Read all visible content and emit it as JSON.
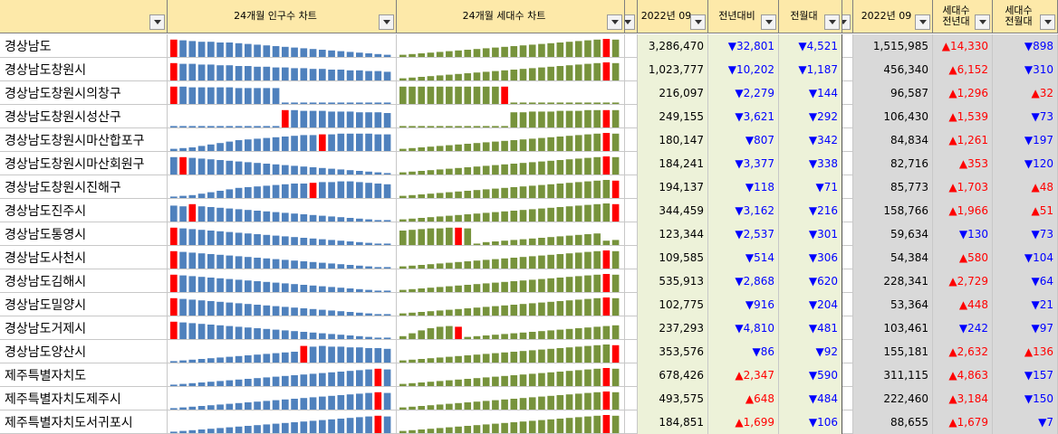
{
  "headers": [
    {
      "label": "",
      "filter": true
    },
    {
      "label": "24개월 인구수 차트",
      "filter": true
    },
    {
      "label": "24개월 세대수 차트",
      "filter": true
    },
    {
      "label": "",
      "filter": true
    },
    {
      "label": "2022년 09",
      "filter": true
    },
    {
      "label": "전년대비",
      "filter": true
    },
    {
      "label": "전월대",
      "filter": true
    },
    {
      "label": "",
      "filter": true
    },
    {
      "label": "2022년 09",
      "filter": true
    },
    {
      "label": "세대수\n전년대",
      "filter": true
    },
    {
      "label": "세대수\n전월대",
      "filter": true
    }
  ],
  "colors": {
    "header_bg": "#fde9a9",
    "pop_bar": "#4f81bd",
    "hh_bar": "#77933c",
    "highlight_bar": "#ff0000",
    "up": "#ff0000",
    "down": "#0000ff",
    "tint_cell": "#edf2d9",
    "gray_cell": "#d9d9d9"
  },
  "arrow_up": "▲",
  "arrow_down": "▼",
  "rows": [
    {
      "name": "경상남도",
      "pop": "3,286,470",
      "pop_yoy": "32,801",
      "pop_yoy_dir": "down",
      "pop_mom": "4,521",
      "pop_mom_dir": "down",
      "hh": "1,515,985",
      "hh_yoy": "14,330",
      "hh_yoy_dir": "up",
      "hh_mom": "898",
      "hh_mom_dir": "down",
      "pop_series": [
        24,
        23,
        22,
        21,
        21,
        20,
        20,
        19,
        18,
        17,
        16,
        15,
        14,
        13,
        12,
        11,
        10,
        9,
        8,
        7,
        6,
        5,
        4,
        3
      ],
      "pop_hi": 0,
      "hh_series": [
        3,
        4,
        5,
        6,
        7,
        8,
        9,
        10,
        11,
        12,
        13,
        14,
        15,
        16,
        17,
        18,
        19,
        20,
        21,
        22,
        23,
        24,
        25,
        24
      ],
      "hh_hi": 22
    },
    {
      "name": "경상남도창원시",
      "pop": "1,023,777",
      "pop_yoy": "10,202",
      "pop_yoy_dir": "down",
      "pop_mom": "1,187",
      "pop_mom_dir": "down",
      "hh": "456,340",
      "hh_yoy": "6,152",
      "hh_yoy_dir": "up",
      "hh_mom": "310",
      "hh_mom_dir": "down",
      "pop_series": [
        24,
        23,
        23,
        22,
        22,
        21,
        21,
        20,
        20,
        19,
        19,
        18,
        18,
        17,
        17,
        16,
        16,
        15,
        15,
        14,
        14,
        13,
        13,
        12
      ],
      "pop_hi": 0,
      "hh_series": [
        3,
        4,
        5,
        6,
        7,
        8,
        9,
        10,
        11,
        12,
        13,
        14,
        15,
        16,
        17,
        18,
        19,
        20,
        21,
        22,
        23,
        24,
        25,
        24
      ],
      "hh_hi": 22
    },
    {
      "name": "경상남도창원시의창구",
      "pop": "216,097",
      "pop_yoy": "2,279",
      "pop_yoy_dir": "down",
      "pop_mom": "144",
      "pop_mom_dir": "down",
      "hh": "96,587",
      "hh_yoy": "1,296",
      "hh_yoy_dir": "up",
      "hh_mom": "32",
      "hh_mom_dir": "up",
      "pop_series": [
        24,
        24,
        23,
        23,
        23,
        23,
        23,
        22,
        22,
        22,
        22,
        22,
        2,
        2,
        2,
        2,
        2,
        2,
        2,
        2,
        2,
        2,
        2,
        2
      ],
      "pop_hi": 0,
      "hh_series": [
        24,
        24,
        24,
        24,
        24,
        24,
        24,
        24,
        24,
        24,
        24,
        24,
        2,
        2,
        2,
        2,
        2,
        2,
        2,
        2,
        2,
        2,
        2,
        2
      ],
      "hh_hi": 11
    },
    {
      "name": "경상남도창원시성산구",
      "pop": "249,155",
      "pop_yoy": "3,621",
      "pop_yoy_dir": "down",
      "pop_mom": "292",
      "pop_mom_dir": "down",
      "hh": "106,430",
      "hh_yoy": "1,539",
      "hh_yoy_dir": "up",
      "hh_mom": "73",
      "hh_mom_dir": "down",
      "pop_series": [
        2,
        2,
        2,
        2,
        2,
        2,
        2,
        2,
        2,
        2,
        2,
        2,
        24,
        24,
        23,
        23,
        23,
        22,
        22,
        22,
        21,
        21,
        21,
        20
      ],
      "pop_hi": 12,
      "hh_series": [
        2,
        2,
        2,
        2,
        2,
        2,
        2,
        2,
        2,
        2,
        2,
        2,
        21,
        21,
        22,
        22,
        22,
        23,
        23,
        23,
        24,
        24,
        24,
        24
      ],
      "hh_hi": 22
    },
    {
      "name": "경상남도창원시마산합포구",
      "pop": "180,147",
      "pop_yoy": "807",
      "pop_yoy_dir": "down",
      "pop_mom": "342",
      "pop_mom_dir": "down",
      "hh": "84,834",
      "hh_yoy": "1,261",
      "hh_yoy_dir": "up",
      "hh_mom": "197",
      "hh_mom_dir": "down",
      "pop_series": [
        3,
        4,
        5,
        7,
        9,
        11,
        13,
        15,
        16,
        17,
        18,
        19,
        20,
        21,
        22,
        22,
        23,
        23,
        24,
        24,
        24,
        24,
        23,
        23
      ],
      "pop_hi": 16,
      "hh_series": [
        3,
        4,
        5,
        6,
        7,
        8,
        9,
        10,
        11,
        12,
        13,
        14,
        15,
        16,
        17,
        18,
        19,
        20,
        21,
        22,
        23,
        24,
        25,
        24
      ],
      "hh_hi": 22
    },
    {
      "name": "경상남도창원시마산회원구",
      "pop": "184,241",
      "pop_yoy": "3,377",
      "pop_yoy_dir": "down",
      "pop_mom": "338",
      "pop_mom_dir": "down",
      "hh": "82,716",
      "hh_yoy": "353",
      "hh_yoy_dir": "up",
      "hh_mom": "120",
      "hh_mom_dir": "down",
      "pop_series": [
        24,
        24,
        23,
        22,
        21,
        20,
        19,
        18,
        17,
        16,
        15,
        14,
        13,
        12,
        11,
        10,
        9,
        8,
        7,
        6,
        5,
        4,
        3,
        2
      ],
      "pop_hi": 1,
      "hh_series": [
        3,
        4,
        5,
        6,
        7,
        8,
        9,
        10,
        11,
        12,
        13,
        14,
        15,
        16,
        17,
        18,
        19,
        20,
        21,
        22,
        23,
        24,
        25,
        24
      ],
      "hh_hi": 22
    },
    {
      "name": "경상남도창원시진해구",
      "pop": "194,137",
      "pop_yoy": "118",
      "pop_yoy_dir": "down",
      "pop_mom": "71",
      "pop_mom_dir": "down",
      "hh": "85,773",
      "hh_yoy": "1,703",
      "hh_yoy_dir": "up",
      "hh_mom": "48",
      "hh_mom_dir": "up",
      "pop_series": [
        2,
        3,
        4,
        6,
        8,
        10,
        12,
        14,
        15,
        16,
        17,
        18,
        19,
        20,
        20,
        21,
        22,
        22,
        23,
        23,
        22,
        21,
        20,
        19
      ],
      "pop_hi": 15,
      "hh_series": [
        3,
        4,
        5,
        6,
        7,
        8,
        9,
        10,
        11,
        12,
        13,
        14,
        15,
        16,
        17,
        18,
        19,
        20,
        21,
        22,
        23,
        24,
        25,
        24
      ],
      "hh_hi": 23
    },
    {
      "name": "경상남도진주시",
      "pop": "344,459",
      "pop_yoy": "3,162",
      "pop_yoy_dir": "down",
      "pop_mom": "216",
      "pop_mom_dir": "down",
      "hh": "158,766",
      "hh_yoy": "1,966",
      "hh_yoy_dir": "up",
      "hh_mom": "51",
      "hh_mom_dir": "up",
      "pop_series": [
        22,
        21,
        24,
        21,
        20,
        19,
        18,
        17,
        16,
        15,
        14,
        13,
        12,
        11,
        10,
        9,
        8,
        7,
        6,
        5,
        4,
        3,
        2,
        2
      ],
      "pop_hi": 2,
      "hh_series": [
        3,
        4,
        5,
        6,
        7,
        8,
        9,
        10,
        11,
        12,
        13,
        14,
        15,
        16,
        17,
        18,
        19,
        20,
        21,
        22,
        23,
        24,
        25,
        24
      ],
      "hh_hi": 23
    },
    {
      "name": "경상남도통영시",
      "pop": "123,344",
      "pop_yoy": "2,537",
      "pop_yoy_dir": "down",
      "pop_mom": "301",
      "pop_mom_dir": "down",
      "hh": "59,634",
      "hh_yoy": "130",
      "hh_yoy_dir": "down",
      "hh_mom": "73",
      "hh_mom_dir": "down",
      "pop_series": [
        24,
        23,
        22,
        21,
        20,
        19,
        18,
        17,
        16,
        15,
        14,
        13,
        12,
        11,
        10,
        9,
        8,
        7,
        6,
        5,
        4,
        3,
        2,
        2
      ],
      "pop_hi": 0,
      "hh_series": [
        20,
        21,
        22,
        23,
        23,
        24,
        24,
        23,
        2,
        4,
        5,
        6,
        7,
        8,
        9,
        10,
        11,
        12,
        13,
        14,
        15,
        16,
        6,
        7
      ],
      "hh_hi": 6
    },
    {
      "name": "경상남도사천시",
      "pop": "109,585",
      "pop_yoy": "514",
      "pop_yoy_dir": "down",
      "pop_mom": "306",
      "pop_mom_dir": "down",
      "hh": "54,384",
      "hh_yoy": "580",
      "hh_yoy_dir": "up",
      "hh_mom": "104",
      "hh_mom_dir": "down",
      "pop_series": [
        24,
        23,
        22,
        21,
        20,
        19,
        18,
        17,
        16,
        15,
        14,
        13,
        12,
        11,
        10,
        9,
        8,
        7,
        6,
        5,
        4,
        3,
        2,
        2
      ],
      "pop_hi": 0,
      "hh_series": [
        3,
        4,
        5,
        6,
        7,
        8,
        9,
        10,
        11,
        12,
        13,
        14,
        15,
        16,
        17,
        18,
        19,
        20,
        21,
        22,
        23,
        24,
        25,
        24
      ],
      "hh_hi": 22
    },
    {
      "name": "경상남도김해시",
      "pop": "535,913",
      "pop_yoy": "2,868",
      "pop_yoy_dir": "down",
      "pop_mom": "620",
      "pop_mom_dir": "down",
      "hh": "228,341",
      "hh_yoy": "2,729",
      "hh_yoy_dir": "up",
      "hh_mom": "64",
      "hh_mom_dir": "down",
      "pop_series": [
        24,
        23,
        22,
        21,
        20,
        19,
        18,
        17,
        16,
        15,
        14,
        13,
        12,
        11,
        10,
        9,
        8,
        7,
        6,
        5,
        4,
        3,
        2,
        2
      ],
      "pop_hi": 0,
      "hh_series": [
        3,
        4,
        5,
        6,
        7,
        8,
        9,
        10,
        11,
        12,
        13,
        14,
        15,
        16,
        17,
        18,
        19,
        20,
        21,
        22,
        23,
        24,
        25,
        24
      ],
      "hh_hi": 22
    },
    {
      "name": "경상남도밀양시",
      "pop": "102,775",
      "pop_yoy": "916",
      "pop_yoy_dir": "down",
      "pop_mom": "204",
      "pop_mom_dir": "down",
      "hh": "53,364",
      "hh_yoy": "448",
      "hh_yoy_dir": "up",
      "hh_mom": "21",
      "hh_mom_dir": "down",
      "pop_series": [
        24,
        23,
        22,
        21,
        20,
        19,
        18,
        17,
        16,
        15,
        14,
        13,
        12,
        11,
        10,
        9,
        8,
        7,
        6,
        5,
        4,
        3,
        2,
        2
      ],
      "pop_hi": 0,
      "hh_series": [
        3,
        4,
        5,
        6,
        7,
        8,
        9,
        10,
        11,
        12,
        13,
        14,
        15,
        16,
        17,
        18,
        19,
        20,
        21,
        22,
        23,
        24,
        25,
        24
      ],
      "hh_hi": 22
    },
    {
      "name": "경상남도거제시",
      "pop": "237,293",
      "pop_yoy": "4,810",
      "pop_yoy_dir": "down",
      "pop_mom": "481",
      "pop_mom_dir": "down",
      "hh": "103,461",
      "hh_yoy": "242",
      "hh_yoy_dir": "down",
      "hh_mom": "97",
      "hh_mom_dir": "down",
      "pop_series": [
        24,
        23,
        22,
        21,
        20,
        19,
        18,
        17,
        16,
        15,
        14,
        13,
        12,
        11,
        10,
        9,
        8,
        7,
        6,
        5,
        4,
        3,
        2,
        2
      ],
      "pop_hi": 0,
      "hh_series": [
        4,
        8,
        12,
        15,
        17,
        18,
        17,
        3,
        4,
        5,
        6,
        7,
        8,
        9,
        10,
        11,
        12,
        13,
        14,
        15,
        16,
        17,
        18,
        19
      ],
      "hh_hi": 6
    },
    {
      "name": "경상남도양산시",
      "pop": "353,576",
      "pop_yoy": "86",
      "pop_yoy_dir": "down",
      "pop_mom": "92",
      "pop_mom_dir": "down",
      "hh": "155,181",
      "hh_yoy": "2,632",
      "hh_yoy_dir": "up",
      "hh_mom": "136",
      "hh_mom_dir": "up",
      "pop_series": [
        2,
        3,
        4,
        5,
        6,
        7,
        8,
        9,
        10,
        11,
        12,
        13,
        14,
        15,
        23,
        22,
        23,
        22,
        22,
        21,
        21,
        20,
        20,
        19
      ],
      "pop_hi": 14,
      "hh_series": [
        3,
        4,
        5,
        6,
        7,
        8,
        9,
        10,
        11,
        12,
        13,
        14,
        15,
        16,
        17,
        18,
        19,
        20,
        21,
        22,
        23,
        24,
        25,
        24
      ],
      "hh_hi": 23
    },
    {
      "name": "제주특별자치도",
      "pop": "678,426",
      "pop_yoy": "2,347",
      "pop_yoy_dir": "up",
      "pop_mom": "590",
      "pop_mom_dir": "down",
      "hh": "311,115",
      "hh_yoy": "4,863",
      "hh_yoy_dir": "up",
      "hh_mom": "157",
      "hh_mom_dir": "down",
      "pop_series": [
        2,
        3,
        4,
        5,
        6,
        7,
        8,
        9,
        10,
        11,
        12,
        13,
        14,
        15,
        16,
        17,
        18,
        19,
        20,
        21,
        22,
        23,
        24,
        23
      ],
      "pop_hi": 22,
      "hh_series": [
        3,
        4,
        5,
        6,
        7,
        8,
        9,
        10,
        11,
        12,
        13,
        14,
        15,
        16,
        17,
        18,
        19,
        20,
        21,
        22,
        23,
        24,
        25,
        24
      ],
      "hh_hi": 22
    },
    {
      "name": "제주특별자치도제주시",
      "pop": "493,575",
      "pop_yoy": "648",
      "pop_yoy_dir": "up",
      "pop_mom": "484",
      "pop_mom_dir": "down",
      "hh": "222,460",
      "hh_yoy": "3,184",
      "hh_yoy_dir": "up",
      "hh_mom": "150",
      "hh_mom_dir": "down",
      "pop_series": [
        2,
        3,
        4,
        5,
        6,
        7,
        8,
        9,
        10,
        11,
        12,
        13,
        14,
        15,
        16,
        17,
        18,
        19,
        20,
        21,
        22,
        23,
        24,
        23
      ],
      "pop_hi": 22,
      "hh_series": [
        3,
        4,
        5,
        6,
        7,
        8,
        9,
        10,
        11,
        12,
        13,
        14,
        15,
        16,
        17,
        18,
        19,
        20,
        21,
        22,
        23,
        24,
        25,
        24
      ],
      "hh_hi": 22
    },
    {
      "name": "제주특별자치도서귀포시",
      "pop": "184,851",
      "pop_yoy": "1,699",
      "pop_yoy_dir": "up",
      "pop_mom": "106",
      "pop_mom_dir": "down",
      "hh": "88,655",
      "hh_yoy": "1,679",
      "hh_yoy_dir": "up",
      "hh_mom": "7",
      "hh_mom_dir": "down",
      "pop_series": [
        2,
        3,
        4,
        5,
        6,
        7,
        8,
        9,
        10,
        11,
        12,
        13,
        14,
        15,
        16,
        17,
        18,
        19,
        20,
        21,
        22,
        23,
        24,
        23
      ],
      "pop_hi": 22,
      "hh_series": [
        3,
        4,
        5,
        6,
        7,
        8,
        9,
        10,
        11,
        12,
        13,
        14,
        15,
        16,
        17,
        18,
        19,
        20,
        21,
        22,
        23,
        24,
        25,
        24
      ],
      "hh_hi": 22
    }
  ]
}
